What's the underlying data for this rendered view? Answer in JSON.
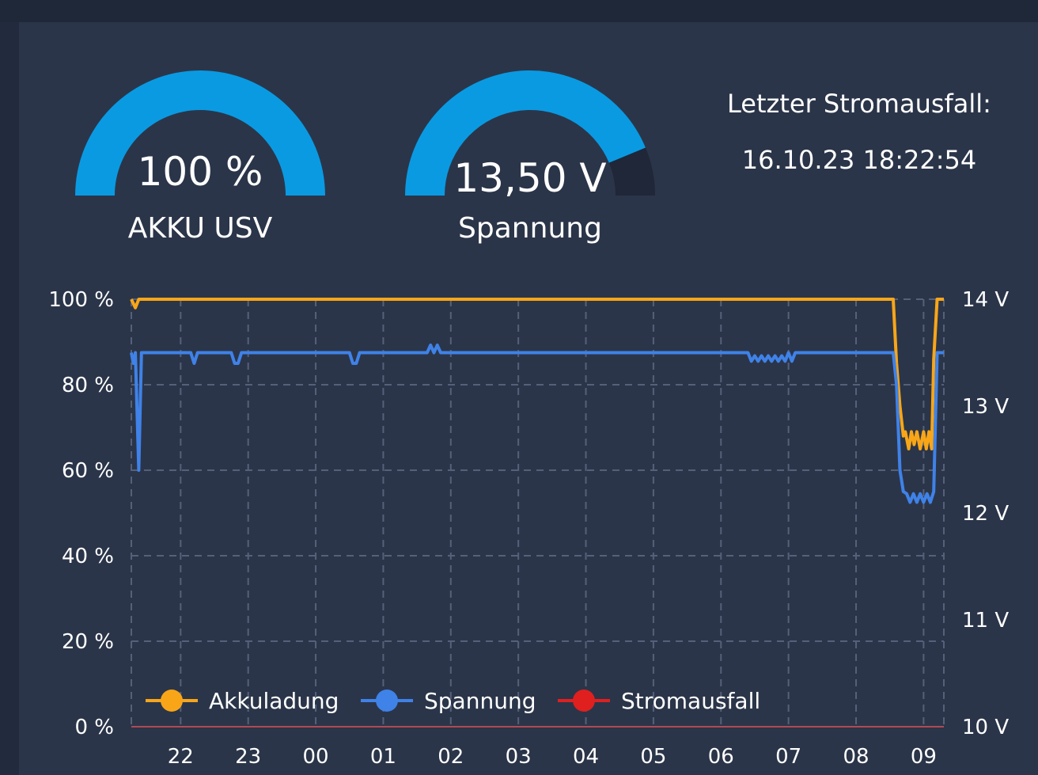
{
  "gauges": [
    {
      "value_text": "100 %",
      "label": "AKKU USV",
      "fraction": 1.0,
      "color": "#0a9ae2"
    },
    {
      "value_text": "13,50 V",
      "label": "Spannung",
      "fraction": 0.875,
      "color": "#0a9ae2"
    }
  ],
  "info": {
    "title": "Letzter Stromausfall:",
    "timestamp": "16.10.23 18:22:54"
  },
  "chart_data": {
    "type": "line",
    "x_ticks": [
      "22",
      "23",
      "00",
      "01",
      "02",
      "03",
      "04",
      "05",
      "06",
      "07",
      "08",
      "09"
    ],
    "x_start": 21.27,
    "x_end": 33.3,
    "y_left": {
      "min": 0,
      "max": 100,
      "ticks": [
        0,
        20,
        40,
        60,
        80,
        100
      ],
      "unit": " %"
    },
    "y_right": {
      "min": 10,
      "max": 14,
      "ticks": [
        10,
        11,
        12,
        13,
        14
      ],
      "unit": " V"
    },
    "grid": true,
    "legend_placement": "bottom-left",
    "series": [
      {
        "name": "Akkuladung",
        "axis": "left",
        "color": "#f8a618",
        "x": [
          21.27,
          21.33,
          21.38,
          21.43,
          21.5,
          32.55,
          32.6,
          32.65,
          32.7,
          32.73,
          32.78,
          32.82,
          32.86,
          32.9,
          32.95,
          33.0,
          33.04,
          33.08,
          33.12,
          33.15,
          33.2,
          33.3
        ],
        "y": [
          100,
          98,
          100,
          100,
          100,
          100,
          85,
          75,
          68,
          69,
          65,
          69,
          66,
          69,
          65,
          69,
          65,
          69,
          65,
          86,
          100,
          100
        ]
      },
      {
        "name": "Spannung",
        "axis": "right",
        "color": "#3f82e8",
        "x": [
          21.27,
          21.3,
          21.33,
          21.38,
          21.42,
          21.45,
          21.5,
          22.15,
          22.2,
          22.25,
          22.3,
          22.75,
          22.8,
          22.85,
          22.9,
          22.95,
          24.5,
          24.55,
          24.6,
          24.65,
          25.65,
          25.7,
          25.75,
          25.8,
          25.85,
          30.4,
          30.45,
          30.5,
          30.55,
          30.6,
          30.65,
          30.7,
          30.75,
          30.8,
          30.85,
          30.9,
          30.95,
          31.0,
          31.05,
          31.1,
          32.55,
          32.6,
          32.65,
          32.7,
          32.75,
          32.8,
          32.85,
          32.9,
          32.95,
          33.0,
          33.05,
          33.1,
          33.15,
          33.2,
          33.3
        ],
        "y": [
          13.5,
          13.4,
          13.5,
          12.4,
          13.5,
          13.5,
          13.5,
          13.5,
          13.4,
          13.5,
          13.5,
          13.5,
          13.4,
          13.4,
          13.5,
          13.5,
          13.5,
          13.4,
          13.4,
          13.5,
          13.5,
          13.57,
          13.5,
          13.57,
          13.5,
          13.5,
          13.42,
          13.47,
          13.42,
          13.47,
          13.42,
          13.47,
          13.42,
          13.47,
          13.42,
          13.47,
          13.42,
          13.5,
          13.42,
          13.5,
          13.5,
          13.2,
          12.4,
          12.2,
          12.18,
          12.1,
          12.18,
          12.1,
          12.18,
          12.1,
          12.18,
          12.1,
          12.2,
          13.5,
          13.5
        ]
      },
      {
        "name": "Stromausfall",
        "axis": "left",
        "color": "#e01f1f",
        "x": [
          21.27,
          33.3
        ],
        "y": [
          0,
          0
        ]
      }
    ]
  }
}
